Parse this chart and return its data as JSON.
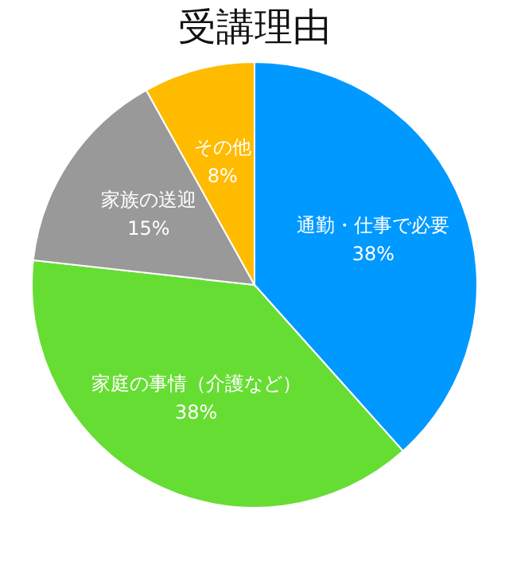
{
  "chart_data": {
    "type": "pie",
    "title": "受講理由",
    "categories": [
      "通勤・仕事で必要",
      "家庭の事情（介護など）",
      "家族の送迎",
      "その他"
    ],
    "values": [
      38,
      38,
      15,
      8
    ],
    "value_labels": [
      "38%",
      "38%",
      "15%",
      "8%"
    ],
    "colors": [
      "#0099ff",
      "#66dd33",
      "#999999",
      "#ffbb00"
    ],
    "legend": false
  }
}
